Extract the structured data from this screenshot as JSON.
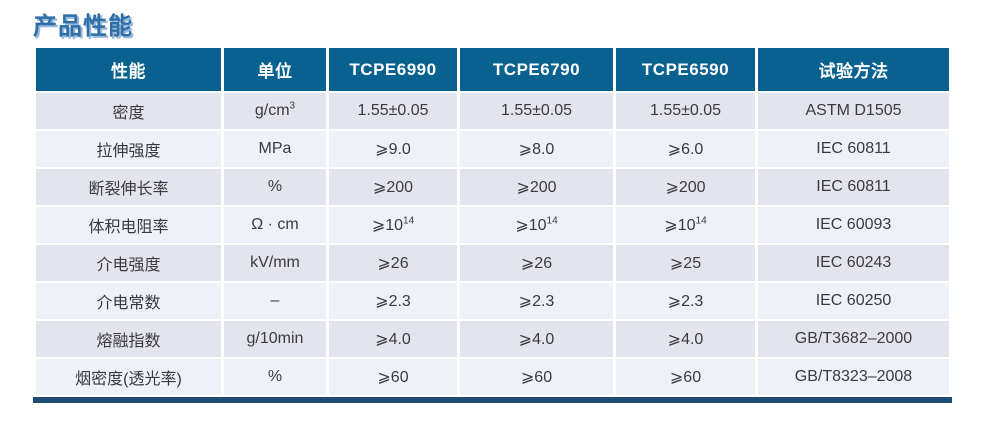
{
  "page_title": "产品性能",
  "colors": {
    "title_color": "#2f6fa8",
    "title_shadow": "#9ab9d8",
    "header_bg": "#08618f",
    "row_odd": "#e4e4ee",
    "row_even": "#eef1f8",
    "bottom_bar": "#1e4a76"
  },
  "table": {
    "headers": [
      "性能",
      "单位",
      "TCPE6990",
      "TCPE6790",
      "TCPE6590",
      "试验方法"
    ],
    "rows": [
      [
        "密度",
        "g/cm^3",
        "1.55±0.05",
        "1.55±0.05",
        "1.55±0.05",
        "ASTM D1505"
      ],
      [
        "拉伸强度",
        "MPa",
        "⩾9.0",
        "⩾8.0",
        "⩾6.0",
        "IEC 60811"
      ],
      [
        "断裂伸长率",
        "%",
        "⩾200",
        "⩾200",
        "⩾200",
        "IEC 60811"
      ],
      [
        "体积电阻率",
        "Ω · cm",
        "⩾10^14",
        "⩾10^14",
        "⩾10^14",
        "IEC 60093"
      ],
      [
        "介电强度",
        "kV/mm",
        "⩾26",
        "⩾26",
        "⩾25",
        "IEC 60243"
      ],
      [
        "介电常数",
        "–",
        "⩾2.3",
        "⩾2.3",
        "⩾2.3",
        "IEC 60250"
      ],
      [
        "熔融指数",
        "g/10min",
        "⩾4.0",
        "⩾4.0",
        "⩾4.0",
        "GB/T3682–2000"
      ],
      [
        "烟密度(透光率)",
        "%",
        "⩾60",
        "⩾60",
        "⩾60",
        "GB/T8323–2008"
      ]
    ]
  }
}
